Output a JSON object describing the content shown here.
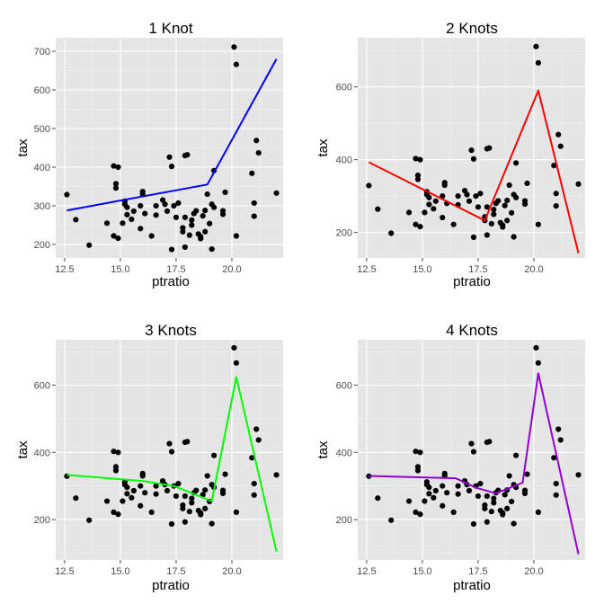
{
  "chart_data": [
    {
      "type": "scatter",
      "title": "1 Knot",
      "xlabel": "ptratio",
      "ylabel": "tax",
      "xlim": [
        12.1,
        22.3
      ],
      "ylim": [
        165,
        735
      ],
      "xticks": [
        12.5,
        15.0,
        17.5,
        20.0
      ],
      "xtick_labels": [
        "12.5",
        "15.0",
        "17.5",
        "20.0"
      ],
      "yticks": [
        200,
        300,
        400,
        500,
        600,
        700
      ],
      "ytick_labels": [
        "200",
        "300",
        "400",
        "500",
        "600",
        "700"
      ],
      "grid": true,
      "points": [
        [
          12.6,
          329
        ],
        [
          13.0,
          264
        ],
        [
          13.6,
          198
        ],
        [
          14.4,
          255
        ],
        [
          14.7,
          222
        ],
        [
          14.7,
          403
        ],
        [
          14.8,
          346
        ],
        [
          14.8,
          357
        ],
        [
          14.9,
          400
        ],
        [
          14.9,
          216
        ],
        [
          15.1,
          255
        ],
        [
          15.2,
          304
        ],
        [
          15.2,
          312
        ],
        [
          15.3,
          277
        ],
        [
          15.3,
          296
        ],
        [
          15.5,
          265
        ],
        [
          15.6,
          286
        ],
        [
          15.9,
          241
        ],
        [
          15.9,
          300
        ],
        [
          16.0,
          337
        ],
        [
          16.0,
          330
        ],
        [
          16.1,
          280
        ],
        [
          16.4,
          222
        ],
        [
          16.6,
          276
        ],
        [
          16.6,
          300
        ],
        [
          16.9,
          315
        ],
        [
          17.0,
          304
        ],
        [
          17.1,
          286
        ],
        [
          17.2,
          426
        ],
        [
          17.3,
          187
        ],
        [
          17.3,
          402
        ],
        [
          17.4,
          300
        ],
        [
          17.5,
          270
        ],
        [
          17.6,
          307
        ],
        [
          17.8,
          233
        ],
        [
          17.8,
          243
        ],
        [
          17.9,
          270
        ],
        [
          17.9,
          193
        ],
        [
          17.9,
          430
        ],
        [
          18.0,
          432
        ],
        [
          18.1,
          224
        ],
        [
          18.2,
          250
        ],
        [
          18.2,
          263
        ],
        [
          18.3,
          280
        ],
        [
          18.4,
          287
        ],
        [
          18.5,
          227
        ],
        [
          18.6,
          220
        ],
        [
          18.6,
          215
        ],
        [
          18.7,
          274
        ],
        [
          18.8,
          233
        ],
        [
          18.8,
          288
        ],
        [
          18.9,
          330
        ],
        [
          19.0,
          254
        ],
        [
          19.1,
          304
        ],
        [
          19.1,
          188
        ],
        [
          19.2,
          391
        ],
        [
          19.2,
          296
        ],
        [
          19.6,
          278
        ],
        [
          19.6,
          287
        ],
        [
          19.7,
          335
        ],
        [
          20.1,
          711
        ],
        [
          20.2,
          666
        ],
        [
          20.2,
          222
        ],
        [
          20.9,
          384
        ],
        [
          21.0,
          307
        ],
        [
          21.0,
          273
        ],
        [
          21.1,
          469
        ],
        [
          21.2,
          437
        ],
        [
          22.0,
          333
        ]
      ],
      "fit_line": {
        "color": "#0000ff",
        "points": [
          [
            12.6,
            288
          ],
          [
            18.9,
            355
          ],
          [
            22.0,
            680
          ]
        ]
      }
    },
    {
      "type": "scatter",
      "title": "2 Knots",
      "xlabel": "ptratio",
      "ylabel": "tax",
      "xlim": [
        12.1,
        22.3
      ],
      "ylim": [
        130,
        735
      ],
      "xticks": [
        12.5,
        15.0,
        17.5,
        20.0
      ],
      "xtick_labels": [
        "12.5",
        "15.0",
        "17.5",
        "20.0"
      ],
      "yticks": [
        200,
        400,
        600
      ],
      "ytick_labels": [
        "200",
        "400",
        "600"
      ],
      "grid": true,
      "points": [
        [
          12.6,
          329
        ],
        [
          13.0,
          264
        ],
        [
          13.6,
          198
        ],
        [
          14.4,
          255
        ],
        [
          14.7,
          222
        ],
        [
          14.7,
          403
        ],
        [
          14.8,
          346
        ],
        [
          14.8,
          357
        ],
        [
          14.9,
          400
        ],
        [
          14.9,
          216
        ],
        [
          15.1,
          255
        ],
        [
          15.2,
          304
        ],
        [
          15.2,
          312
        ],
        [
          15.3,
          277
        ],
        [
          15.3,
          296
        ],
        [
          15.5,
          265
        ],
        [
          15.6,
          286
        ],
        [
          15.9,
          241
        ],
        [
          15.9,
          300
        ],
        [
          16.0,
          337
        ],
        [
          16.0,
          330
        ],
        [
          16.1,
          280
        ],
        [
          16.4,
          222
        ],
        [
          16.6,
          276
        ],
        [
          16.6,
          300
        ],
        [
          16.9,
          315
        ],
        [
          17.0,
          304
        ],
        [
          17.1,
          286
        ],
        [
          17.2,
          426
        ],
        [
          17.3,
          187
        ],
        [
          17.3,
          402
        ],
        [
          17.4,
          300
        ],
        [
          17.5,
          270
        ],
        [
          17.6,
          307
        ],
        [
          17.8,
          233
        ],
        [
          17.8,
          243
        ],
        [
          17.9,
          270
        ],
        [
          17.9,
          193
        ],
        [
          17.9,
          430
        ],
        [
          18.0,
          432
        ],
        [
          18.1,
          224
        ],
        [
          18.2,
          250
        ],
        [
          18.2,
          263
        ],
        [
          18.3,
          280
        ],
        [
          18.4,
          287
        ],
        [
          18.5,
          227
        ],
        [
          18.6,
          220
        ],
        [
          18.6,
          215
        ],
        [
          18.7,
          274
        ],
        [
          18.8,
          233
        ],
        [
          18.8,
          288
        ],
        [
          18.9,
          330
        ],
        [
          19.0,
          254
        ],
        [
          19.1,
          304
        ],
        [
          19.1,
          188
        ],
        [
          19.2,
          391
        ],
        [
          19.2,
          296
        ],
        [
          19.6,
          278
        ],
        [
          19.6,
          287
        ],
        [
          19.7,
          335
        ],
        [
          20.1,
          711
        ],
        [
          20.2,
          666
        ],
        [
          20.2,
          222
        ],
        [
          20.9,
          384
        ],
        [
          21.0,
          307
        ],
        [
          21.0,
          273
        ],
        [
          21.1,
          469
        ],
        [
          21.2,
          437
        ],
        [
          22.0,
          333
        ]
      ],
      "fit_line": {
        "color": "#ff0000",
        "points": [
          [
            12.6,
            393
          ],
          [
            17.8,
            233
          ],
          [
            20.2,
            590
          ],
          [
            22.0,
            143
          ]
        ]
      }
    },
    {
      "type": "scatter",
      "title": "3 Knots",
      "xlabel": "ptratio",
      "ylabel": "tax",
      "xlim": [
        12.1,
        22.3
      ],
      "ylim": [
        80,
        735
      ],
      "xticks": [
        12.5,
        15.0,
        17.5,
        20.0
      ],
      "xtick_labels": [
        "12.5",
        "15.0",
        "17.5",
        "20.0"
      ],
      "yticks": [
        200,
        400,
        600
      ],
      "ytick_labels": [
        "200",
        "400",
        "600"
      ],
      "grid": true,
      "points": [
        [
          12.6,
          329
        ],
        [
          13.0,
          264
        ],
        [
          13.6,
          198
        ],
        [
          14.4,
          255
        ],
        [
          14.7,
          222
        ],
        [
          14.7,
          403
        ],
        [
          14.8,
          346
        ],
        [
          14.8,
          357
        ],
        [
          14.9,
          400
        ],
        [
          14.9,
          216
        ],
        [
          15.1,
          255
        ],
        [
          15.2,
          304
        ],
        [
          15.2,
          312
        ],
        [
          15.3,
          277
        ],
        [
          15.3,
          296
        ],
        [
          15.5,
          265
        ],
        [
          15.6,
          286
        ],
        [
          15.9,
          241
        ],
        [
          15.9,
          300
        ],
        [
          16.0,
          337
        ],
        [
          16.0,
          330
        ],
        [
          16.1,
          280
        ],
        [
          16.4,
          222
        ],
        [
          16.6,
          276
        ],
        [
          16.6,
          300
        ],
        [
          16.9,
          315
        ],
        [
          17.0,
          304
        ],
        [
          17.1,
          286
        ],
        [
          17.2,
          426
        ],
        [
          17.3,
          187
        ],
        [
          17.3,
          402
        ],
        [
          17.4,
          300
        ],
        [
          17.5,
          270
        ],
        [
          17.6,
          307
        ],
        [
          17.8,
          233
        ],
        [
          17.8,
          243
        ],
        [
          17.9,
          270
        ],
        [
          17.9,
          193
        ],
        [
          17.9,
          430
        ],
        [
          18.0,
          432
        ],
        [
          18.1,
          224
        ],
        [
          18.2,
          250
        ],
        [
          18.2,
          263
        ],
        [
          18.3,
          280
        ],
        [
          18.4,
          287
        ],
        [
          18.5,
          227
        ],
        [
          18.6,
          220
        ],
        [
          18.6,
          215
        ],
        [
          18.7,
          274
        ],
        [
          18.8,
          233
        ],
        [
          18.8,
          288
        ],
        [
          18.9,
          330
        ],
        [
          19.0,
          254
        ],
        [
          19.1,
          304
        ],
        [
          19.1,
          188
        ],
        [
          19.2,
          391
        ],
        [
          19.2,
          296
        ],
        [
          19.6,
          278
        ],
        [
          19.6,
          287
        ],
        [
          19.7,
          335
        ],
        [
          20.1,
          711
        ],
        [
          20.2,
          666
        ],
        [
          20.2,
          222
        ],
        [
          20.9,
          384
        ],
        [
          21.0,
          307
        ],
        [
          21.0,
          273
        ],
        [
          21.1,
          469
        ],
        [
          21.2,
          437
        ],
        [
          22.0,
          333
        ]
      ],
      "fit_line": {
        "color": "#00ff00",
        "points": [
          [
            12.6,
            333
          ],
          [
            16.0,
            315
          ],
          [
            17.4,
            300
          ],
          [
            19.1,
            255
          ],
          [
            20.2,
            624
          ],
          [
            22.0,
            105
          ]
        ]
      }
    },
    {
      "type": "scatter",
      "title": "4 Knots",
      "xlabel": "ptratio",
      "ylabel": "tax",
      "xlim": [
        12.1,
        22.3
      ],
      "ylim": [
        80,
        735
      ],
      "xticks": [
        12.5,
        15.0,
        17.5,
        20.0
      ],
      "xtick_labels": [
        "12.5",
        "15.0",
        "17.5",
        "20.0"
      ],
      "yticks": [
        200,
        400,
        600
      ],
      "ytick_labels": [
        "200",
        "400",
        "600"
      ],
      "grid": true,
      "points": [
        [
          12.6,
          329
        ],
        [
          13.0,
          264
        ],
        [
          13.6,
          198
        ],
        [
          14.4,
          255
        ],
        [
          14.7,
          222
        ],
        [
          14.7,
          403
        ],
        [
          14.8,
          346
        ],
        [
          14.8,
          357
        ],
        [
          14.9,
          400
        ],
        [
          14.9,
          216
        ],
        [
          15.1,
          255
        ],
        [
          15.2,
          304
        ],
        [
          15.2,
          312
        ],
        [
          15.3,
          277
        ],
        [
          15.3,
          296
        ],
        [
          15.5,
          265
        ],
        [
          15.6,
          286
        ],
        [
          15.9,
          241
        ],
        [
          15.9,
          300
        ],
        [
          16.0,
          337
        ],
        [
          16.0,
          330
        ],
        [
          16.1,
          280
        ],
        [
          16.4,
          222
        ],
        [
          16.6,
          276
        ],
        [
          16.6,
          300
        ],
        [
          16.9,
          315
        ],
        [
          17.0,
          304
        ],
        [
          17.1,
          286
        ],
        [
          17.2,
          426
        ],
        [
          17.3,
          187
        ],
        [
          17.3,
          402
        ],
        [
          17.4,
          300
        ],
        [
          17.5,
          270
        ],
        [
          17.6,
          307
        ],
        [
          17.8,
          233
        ],
        [
          17.8,
          243
        ],
        [
          17.9,
          270
        ],
        [
          17.9,
          193
        ],
        [
          17.9,
          430
        ],
        [
          18.0,
          432
        ],
        [
          18.1,
          224
        ],
        [
          18.2,
          250
        ],
        [
          18.2,
          263
        ],
        [
          18.3,
          280
        ],
        [
          18.4,
          287
        ],
        [
          18.5,
          227
        ],
        [
          18.6,
          220
        ],
        [
          18.6,
          215
        ],
        [
          18.7,
          274
        ],
        [
          18.8,
          233
        ],
        [
          18.8,
          288
        ],
        [
          18.9,
          330
        ],
        [
          19.0,
          254
        ],
        [
          19.1,
          304
        ],
        [
          19.1,
          188
        ],
        [
          19.2,
          391
        ],
        [
          19.2,
          296
        ],
        [
          19.6,
          278
        ],
        [
          19.6,
          287
        ],
        [
          19.7,
          335
        ],
        [
          20.1,
          711
        ],
        [
          20.2,
          666
        ],
        [
          20.2,
          222
        ],
        [
          20.9,
          384
        ],
        [
          21.0,
          307
        ],
        [
          21.0,
          273
        ],
        [
          21.1,
          469
        ],
        [
          21.2,
          437
        ],
        [
          22.0,
          333
        ]
      ],
      "fit_line": {
        "color": "#9400d3",
        "points": [
          [
            12.6,
            330
          ],
          [
            16.5,
            323
          ],
          [
            17.4,
            295
          ],
          [
            18.3,
            278
          ],
          [
            19.5,
            310
          ],
          [
            20.2,
            635
          ],
          [
            22.0,
            97
          ]
        ]
      }
    }
  ]
}
